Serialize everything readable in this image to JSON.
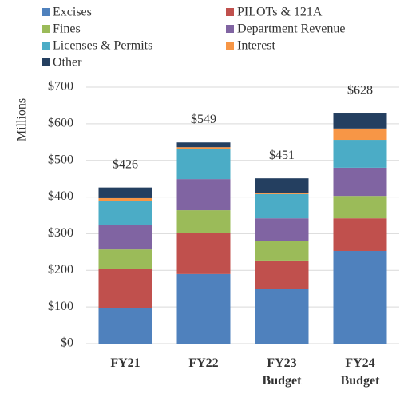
{
  "chart_data": {
    "type": "stacked_bar",
    "y_label": "Millions",
    "categories": [
      "FY21",
      "FY22",
      "FY23 Budget",
      "FY24 Budget"
    ],
    "series": [
      {
        "name": "Excises",
        "color": "#4f81bd",
        "values": [
          96,
          190,
          150,
          253
        ]
      },
      {
        "name": "PILOTs & 121A",
        "color": "#c0504d",
        "values": [
          109,
          111,
          77,
          89
        ]
      },
      {
        "name": "Fines",
        "color": "#9bbb59",
        "values": [
          52,
          63,
          54,
          61
        ]
      },
      {
        "name": "Department Revenue",
        "color": "#8064a2",
        "values": [
          66,
          85,
          61,
          77
        ]
      },
      {
        "name": "Licenses & Permits",
        "color": "#4bacc6",
        "values": [
          67,
          81,
          66,
          76
        ]
      },
      {
        "name": "Interest",
        "color": "#f79646",
        "values": [
          7,
          6,
          4,
          31
        ]
      },
      {
        "name": "Other",
        "color": "#243f60",
        "values": [
          29,
          13,
          39,
          41
        ]
      }
    ],
    "totals": [
      426,
      549,
      451,
      628
    ],
    "total_value_labels": [
      "$426",
      "$549",
      "$451",
      "$628"
    ],
    "ylim": [
      0,
      700
    ],
    "yticks": [
      {
        "value": 0,
        "label": "$0"
      },
      {
        "value": 100,
        "label": "$100"
      },
      {
        "value": 200,
        "label": "$200"
      },
      {
        "value": 300,
        "label": "$300"
      },
      {
        "value": 400,
        "label": "$400"
      },
      {
        "value": 500,
        "label": "$500"
      },
      {
        "value": 600,
        "label": "$600"
      },
      {
        "value": 700,
        "label": "$700"
      }
    ],
    "grid": true
  }
}
